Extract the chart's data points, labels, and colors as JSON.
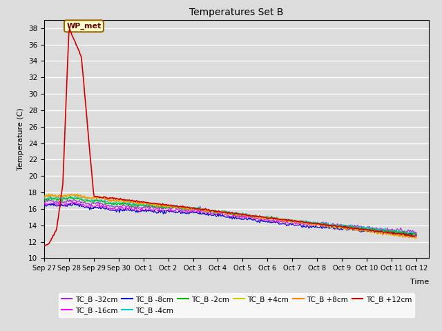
{
  "title": "Temperatures Set B",
  "xlabel": "Time",
  "ylabel": "Temperature (C)",
  "ylim": [
    10,
    39
  ],
  "yticks": [
    10,
    12,
    14,
    16,
    18,
    20,
    22,
    24,
    26,
    28,
    30,
    32,
    34,
    36,
    38
  ],
  "bg_color": "#dcdcdc",
  "series": [
    {
      "label": "TC_B -32cm",
      "color": "#9932CC",
      "lw": 0.9
    },
    {
      "label": "TC_B -16cm",
      "color": "#FF00FF",
      "lw": 0.9
    },
    {
      "label": "TC_B -8cm",
      "color": "#0000CC",
      "lw": 0.9
    },
    {
      "label": "TC_B -4cm",
      "color": "#00CCCC",
      "lw": 0.9
    },
    {
      "label": "TC_B -2cm",
      "color": "#00BB00",
      "lw": 0.9
    },
    {
      "label": "TC_B +4cm",
      "color": "#CCCC00",
      "lw": 0.9
    },
    {
      "label": "TC_B +8cm",
      "color": "#FF8800",
      "lw": 0.9
    },
    {
      "label": "TC_B +12cm",
      "color": "#CC0000",
      "lw": 1.2
    }
  ],
  "wp_keypoints_x": [
    0.0,
    0.2,
    0.5,
    0.75,
    1.0,
    1.5,
    2.0,
    3.0,
    15.5
  ],
  "wp_keypoints_y": [
    11.5,
    11.8,
    13.5,
    19.0,
    38.0,
    34.5,
    17.5,
    17.2,
    12.5
  ],
  "annotation_label": "WP_met",
  "xtick_labels": [
    "Sep 27",
    "Sep 28",
    "Sep 29",
    "Sep 30",
    "Oct 1",
    "Oct 2",
    "Oct 3",
    "Oct 4",
    "Oct 5",
    "Oct 6",
    "Oct 7",
    "Oct 8",
    "Oct 9",
    "Oct 10",
    "Oct 11",
    "Oct 12"
  ],
  "num_points": 500,
  "start_day": 0.0,
  "end_day": 15.0,
  "figsize": [
    6.4,
    4.8
  ],
  "dpi": 100
}
